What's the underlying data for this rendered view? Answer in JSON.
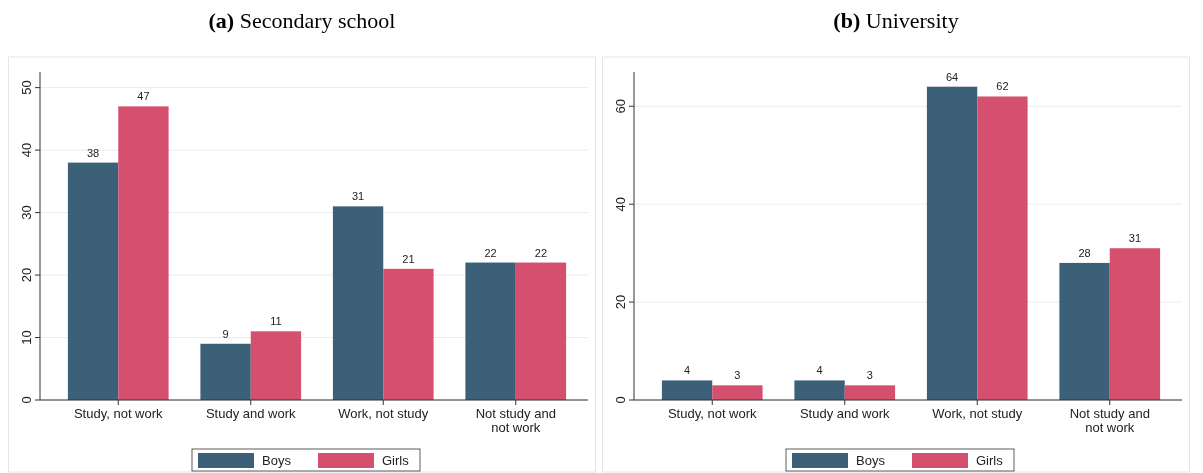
{
  "chart_data": [
    {
      "type": "bar",
      "title": "(a) Secondary school",
      "categories": [
        "Study, not work",
        "Study and work",
        "Work, not study",
        "Not study and not work"
      ],
      "series": [
        {
          "name": "Boys",
          "color": "#3d6079",
          "values": [
            38,
            9,
            31,
            22
          ]
        },
        {
          "name": "Girls",
          "color": "#d4506e",
          "values": [
            47,
            11,
            21,
            22
          ]
        }
      ],
      "ylim": [
        0,
        52.5
      ],
      "yticks": [
        0,
        10,
        20,
        30,
        40,
        50
      ],
      "grid": "y",
      "legend": "bottom",
      "data_labels": true
    },
    {
      "type": "bar",
      "title": "(b) University",
      "categories": [
        "Study, not work",
        "Study and work",
        "Work, not study",
        "Not study and not work"
      ],
      "series": [
        {
          "name": "Boys",
          "color": "#3d6079",
          "values": [
            4,
            4,
            64,
            28
          ]
        },
        {
          "name": "Girls",
          "color": "#d4506e",
          "values": [
            3,
            3,
            62,
            31
          ]
        }
      ],
      "ylim": [
        0,
        67
      ],
      "yticks": [
        0,
        20,
        40,
        60
      ],
      "grid": "y",
      "legend": "bottom",
      "data_labels": true
    }
  ]
}
